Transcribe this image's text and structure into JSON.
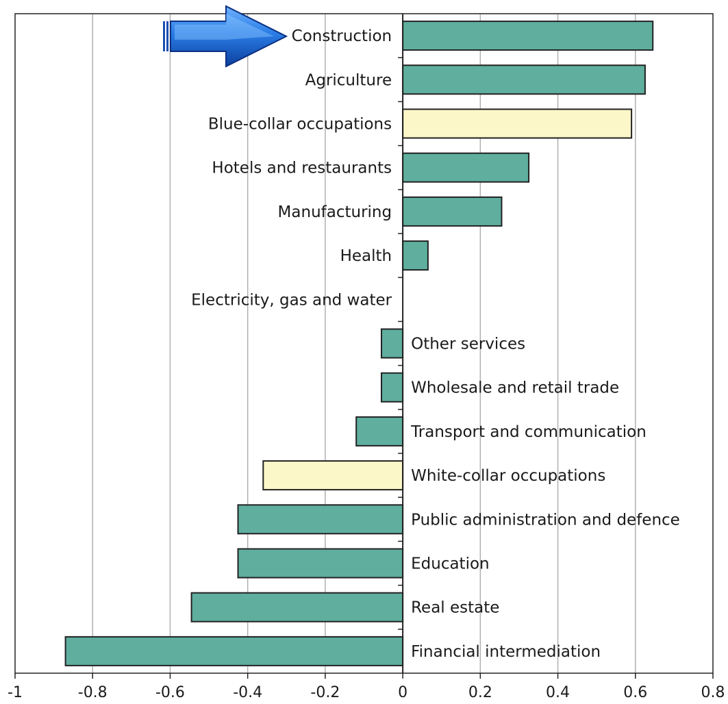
{
  "chart_data": {
    "type": "bar",
    "orientation": "horizontal",
    "title": "",
    "xlabel": "",
    "ylabel": "",
    "xlim": [
      -1,
      0.8
    ],
    "xticks": [
      -1,
      -0.8,
      -0.6,
      -0.4,
      -0.2,
      0,
      0.2,
      0.4,
      0.6,
      0.8
    ],
    "xtick_labels": [
      "-1",
      "-0.8",
      "-0.6",
      "-0.4",
      "-0.2",
      "0",
      "0.2",
      "0.4",
      "0.6",
      "0.8"
    ],
    "grid": "vertical",
    "legend": "none",
    "highlighted_category": "Construction",
    "colors": {
      "sector": "#5fae9e",
      "occupation": "#fbf7c8",
      "arrow": "#1f6fd6",
      "grid": "#b0b0b0"
    },
    "categories": [
      "Construction",
      "Agriculture",
      "Blue-collar occupations",
      "Hotels and restaurants",
      "Manufacturing",
      "Health",
      "Electricity, gas and water",
      "Other services",
      "Wholesale and retail trade",
      "Transport and communication",
      "White-collar occupations",
      "Public administration and defence",
      "Education",
      "Real estate",
      "Financial intermediation"
    ],
    "values": [
      0.645,
      0.625,
      0.59,
      0.325,
      0.255,
      0.065,
      0.0,
      -0.055,
      -0.055,
      -0.12,
      -0.36,
      -0.425,
      -0.425,
      -0.545,
      -0.87
    ],
    "kinds": [
      "sector",
      "sector",
      "occupation",
      "sector",
      "sector",
      "sector",
      "sector",
      "sector",
      "sector",
      "sector",
      "occupation",
      "sector",
      "sector",
      "sector",
      "sector"
    ]
  }
}
